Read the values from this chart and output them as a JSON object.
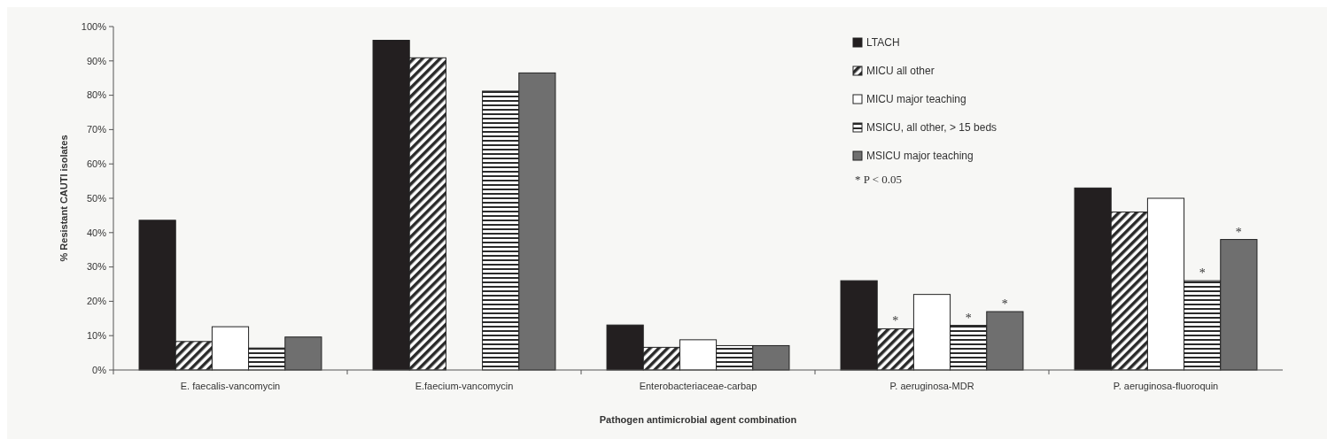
{
  "chart_data": {
    "type": "bar",
    "xlabel": "Pathogen antimicrobial agent combination",
    "ylabel": "% Resistant CAUTI isolates",
    "categories": [
      "E. faecalis-vancomycin",
      "E.faecium-vancomycin",
      "Enterobacteriaceae-carbap",
      "P. aeruginosa-MDR",
      "P. aeruginosa-fluoroquin"
    ],
    "series": [
      {
        "name": "LTACH",
        "color": "#231f20",
        "values": [
          43.6,
          96,
          13.1,
          26,
          53
        ]
      },
      {
        "name": "MICU all other",
        "color": "#2a2a2a",
        "values": [
          8.3,
          90.9,
          6.6,
          12,
          46
        ],
        "value_labels": [
          null,
          null,
          null,
          "*",
          null
        ]
      },
      {
        "name": "MICU major teaching",
        "color": "#ffffff",
        "values": [
          12.6,
          null,
          8.8,
          22,
          50
        ]
      },
      {
        "name": "MSICU, all other, > 15 beds",
        "color": "#2a2a2a",
        "values": [
          6.4,
          81.2,
          7.1,
          13,
          26
        ],
        "value_labels": [
          null,
          null,
          null,
          "*",
          "*"
        ]
      },
      {
        "name": "MSICU major teaching",
        "color": "#6f6f6f",
        "values": [
          9.6,
          86.5,
          7.1,
          17,
          38
        ],
        "value_labels": [
          null,
          null,
          null,
          "*",
          "*"
        ]
      }
    ],
    "ylim": [
      0,
      100
    ],
    "yticks": [
      {
        "value": 0,
        "label": "0%"
      },
      {
        "value": 10,
        "label": "10%"
      },
      {
        "value": 20,
        "label": "20%"
      },
      {
        "value": 30,
        "label": "30%"
      },
      {
        "value": 40,
        "label": "40%"
      },
      {
        "value": 50,
        "label": "50%"
      },
      {
        "value": 60,
        "label": "60%"
      },
      {
        "value": 70,
        "label": "70%"
      },
      {
        "value": 80,
        "label": "80%"
      },
      {
        "value": 90,
        "label": "90%"
      },
      {
        "value": 100,
        "label": "100%"
      }
    ],
    "grid": false,
    "legend": "top right",
    "annotations": [
      "* P < 0.05"
    ]
  }
}
